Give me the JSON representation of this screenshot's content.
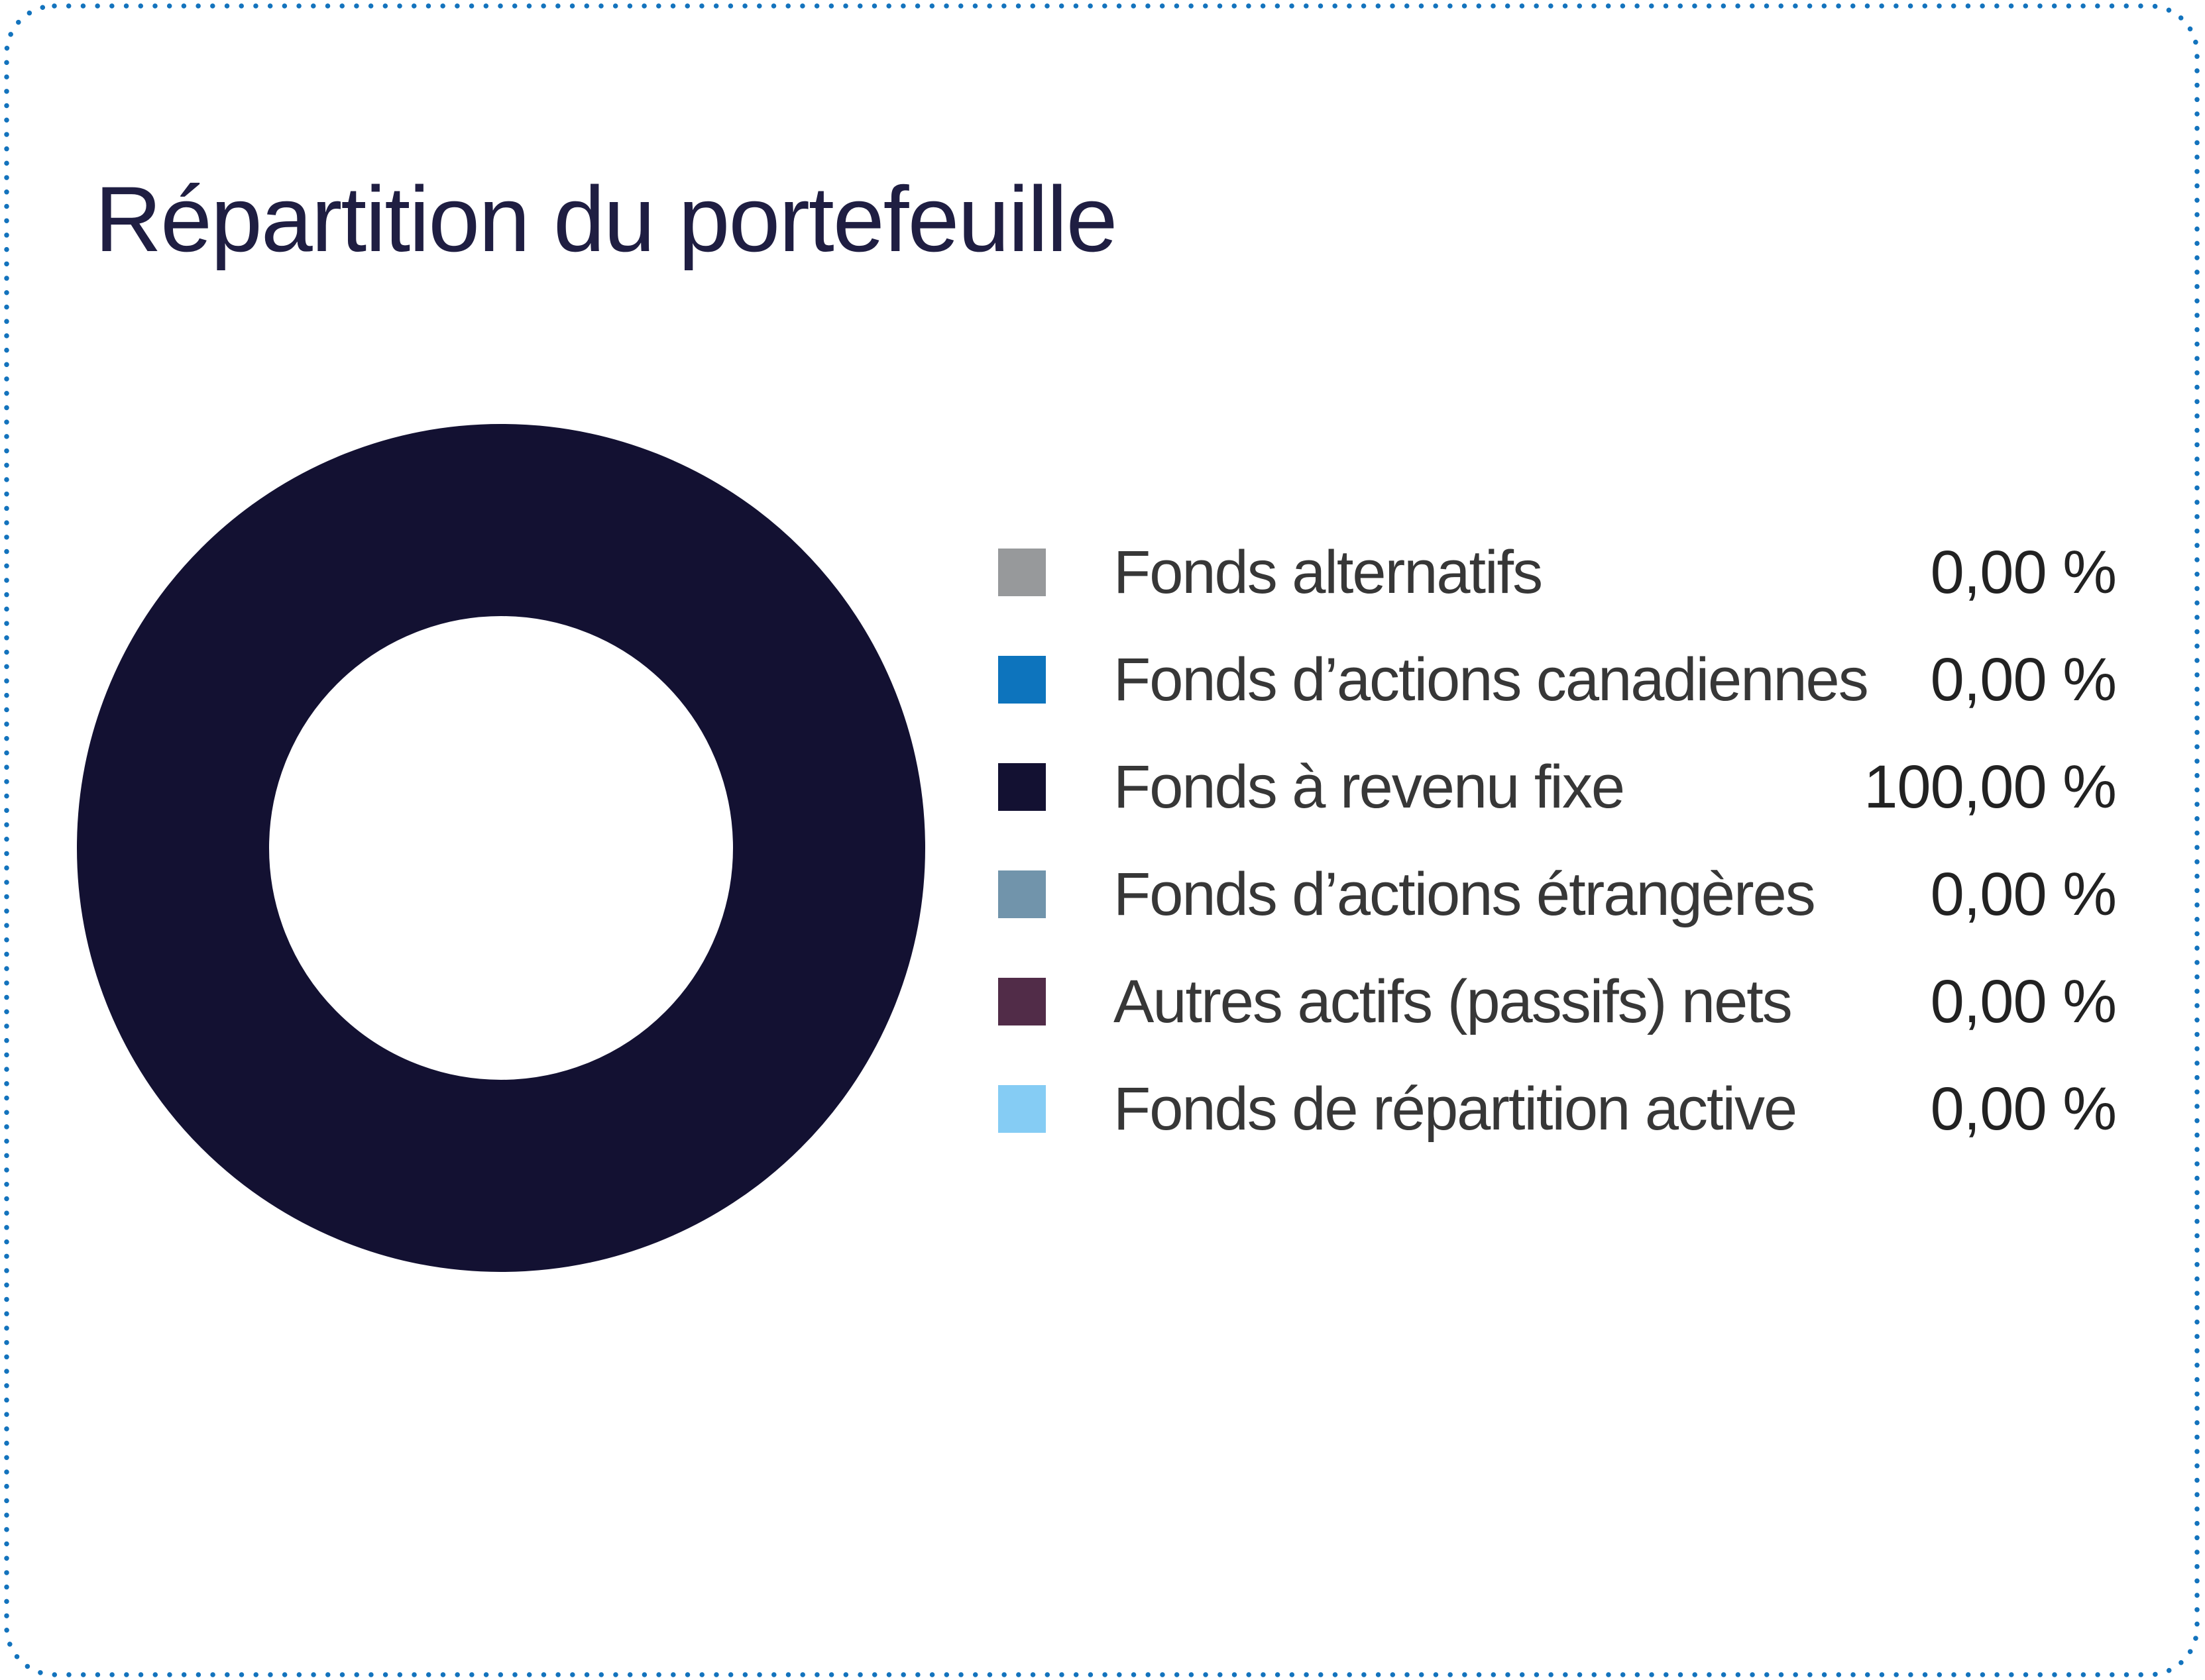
{
  "page": {
    "background": "#ffffff",
    "border": {
      "style": "dotted",
      "color": "#1373bd"
    }
  },
  "chart_data": {
    "type": "pie",
    "subtype": "donut",
    "title": "Répartition du portefeuille",
    "title_color": "#1f1e42",
    "label_color": "#373737",
    "value_color": "#222222",
    "legend_position": "right",
    "grid": false,
    "series": [
      {
        "label": "Fonds alternatifs",
        "value": 0,
        "value_display": "0,00 %",
        "color": "#97999b"
      },
      {
        "label": "Fonds d’actions canadiennes",
        "value": 0,
        "value_display": "0,00 %",
        "color": "#0d74bd"
      },
      {
        "label": "Fonds à revenu fixe",
        "value": 100,
        "value_display": "100,00 %",
        "color": "#131132"
      },
      {
        "label": "Fonds d’actions étrangères",
        "value": 0,
        "value_display": "0,00 %",
        "color": "#7194ab"
      },
      {
        "label": "Autres actifs (passifs) nets",
        "value": 0,
        "value_display": "0,00 %",
        "color": "#512c48"
      },
      {
        "label": "Fonds de répartition active",
        "value": 0,
        "value_display": "0,00 %",
        "color": "#85ccf4"
      }
    ]
  }
}
